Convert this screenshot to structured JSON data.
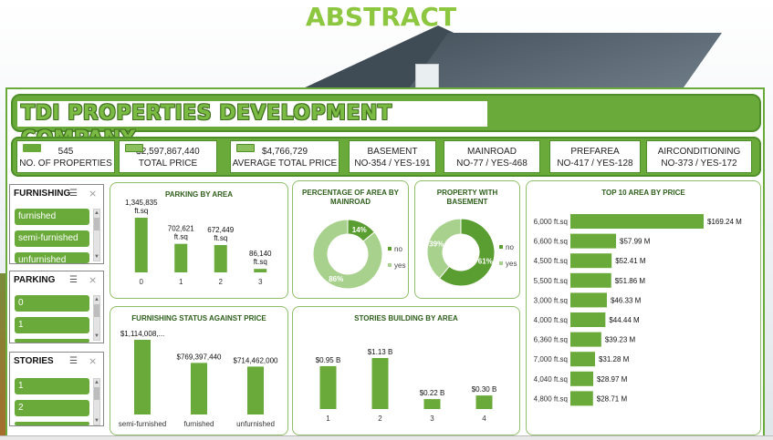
{
  "header": {
    "abstract": "ABSTRACT",
    "company": "TDI PROPERTIES DEVELOPMENT COMPANY"
  },
  "kpis": [
    {
      "value": "545",
      "label": "NO. OF PROPERTIES",
      "icon": "building-icon"
    },
    {
      "value": "$2,597,867,440",
      "label": "TOTAL PRICE",
      "icon": "money-icon"
    },
    {
      "value": "$4,766,729",
      "label": "AVERAGE TOTAL PRICE",
      "icon": "money-icon"
    },
    {
      "value": "BASEMENT",
      "label": "NO-354 / YES-191"
    },
    {
      "value": "MAINROAD",
      "label": "NO-77 / YES-468"
    },
    {
      "value": "PREFAREA",
      "label": "NO-417 / YES-128"
    },
    {
      "value": "AIRCONDITIONING",
      "label": "NO-373 / YES-172"
    }
  ],
  "slicers": {
    "furnishing": {
      "title": "FURNISHING",
      "items": [
        "furnished",
        "semi-furnished",
        "unfurnished"
      ]
    },
    "parking": {
      "title": "PARKING",
      "items": [
        "0",
        "1",
        ""
      ]
    },
    "stories": {
      "title": "STORIES",
      "items": [
        "1",
        "2",
        ""
      ]
    }
  },
  "colors": {
    "accent": "#6aaa3a",
    "light": "#a9d18e",
    "dark": "#4e8f2a",
    "title": "#8dc63f"
  },
  "chart_data": [
    {
      "id": "parking",
      "type": "bar",
      "title": "PARKING BY AREA",
      "categories": [
        "0",
        "1",
        "2",
        "3"
      ],
      "values": [
        1345835,
        702621,
        672449,
        86140
      ],
      "labels": [
        "1,345,835",
        "702,621",
        "672,449",
        "86,140"
      ],
      "unit": "ft.sq",
      "ylim": [
        0,
        1345835
      ]
    },
    {
      "id": "mainroad",
      "type": "pie",
      "title": "PERCENTAGE OF AREA BY MAINROAD",
      "slices": [
        {
          "name": "no",
          "value": 14,
          "label": "14%"
        },
        {
          "name": "yes",
          "value": 86,
          "label": "86%"
        }
      ]
    },
    {
      "id": "basement",
      "type": "pie",
      "title": "PROPERTY WITH BASEMENT",
      "slices": [
        {
          "name": "no",
          "value": 61,
          "label": "61%"
        },
        {
          "name": "yes",
          "value": 39,
          "label": "39%"
        }
      ]
    },
    {
      "id": "top10",
      "type": "bar",
      "orientation": "horizontal",
      "title": "TOP 10 AREA BY PRICE",
      "categories": [
        "6,000 ft.sq",
        "6,600 ft.sq",
        "4,500 ft.sq",
        "5,500 ft.sq",
        "3,000 ft.sq",
        "4,000 ft.sq",
        "6,360 ft.sq",
        "7,000 ft.sq",
        "4,040 ft.sq",
        "4,800 ft.sq"
      ],
      "values": [
        169.24,
        57.99,
        52.41,
        51.86,
        46.33,
        44.44,
        39.23,
        31.28,
        28.97,
        28.71
      ],
      "labels": [
        "$169.24 M",
        "$57.99 M",
        "$52.41 M",
        "$51.86 M",
        "$46.33 M",
        "$44.44 M",
        "$39.23 M",
        "$31.28 M",
        "$28.97 M",
        "$28.71 M"
      ],
      "xlim": [
        0,
        169.24
      ]
    },
    {
      "id": "furnishing",
      "type": "bar",
      "title": "FURNISHING STATUS AGAINST PRICE",
      "categories": [
        "semi-furnished",
        "furnished",
        "unfurnished"
      ],
      "values": [
        1114008000,
        769397440,
        714462000
      ],
      "labels": [
        "$1,114,008,...",
        "$769,397,440",
        "$714,462,000"
      ],
      "ylim": [
        0,
        1114008000
      ]
    },
    {
      "id": "stories",
      "type": "bar",
      "title": "STORIES BUILDING BY AREA",
      "categories": [
        "1",
        "2",
        "3",
        "4"
      ],
      "values": [
        0.95,
        1.13,
        0.22,
        0.3
      ],
      "labels": [
        "$0.95 B",
        "$1.13 B",
        "$0.22 B",
        "$0.30 B"
      ],
      "ylim": [
        0,
        1.13
      ]
    }
  ]
}
